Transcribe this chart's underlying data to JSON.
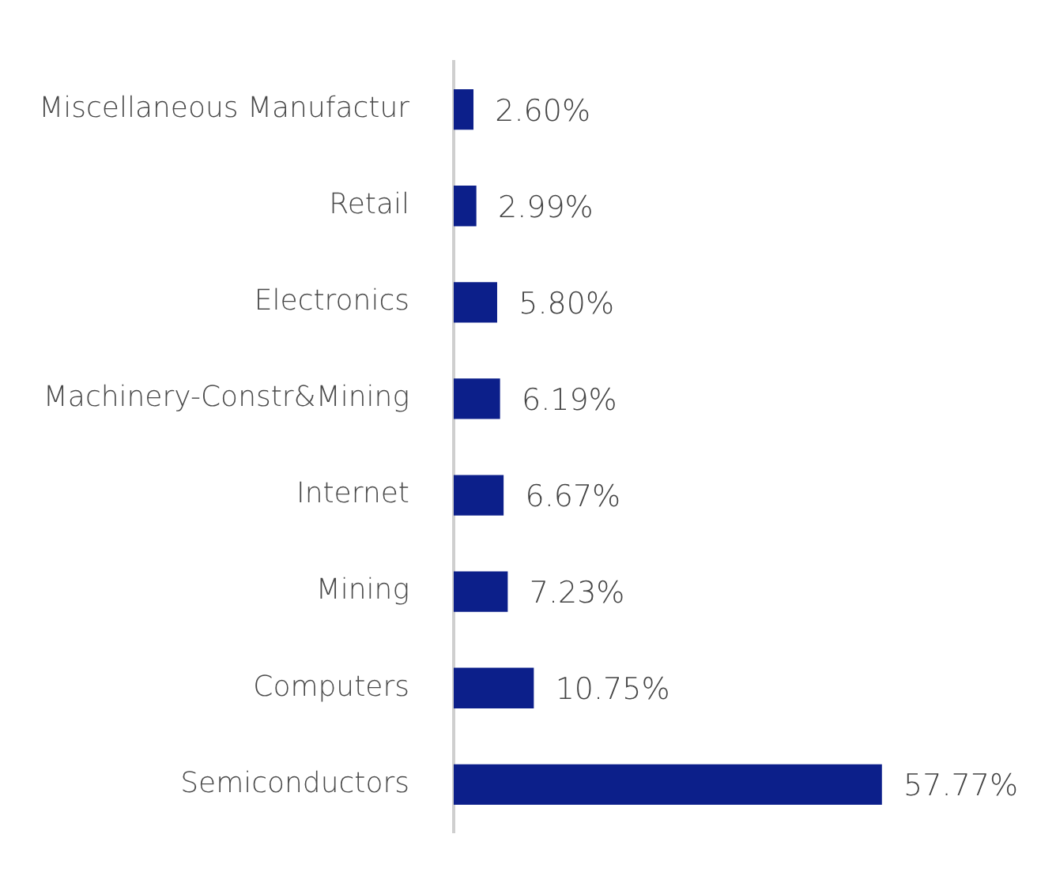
{
  "chart_data": {
    "type": "bar",
    "orientation": "horizontal",
    "categories": [
      "Miscellaneous Manufactur",
      "Retail",
      "Electronics",
      "Machinery-Constr&Mining",
      "Internet",
      "Mining",
      "Computers",
      "Semiconductors"
    ],
    "values": [
      2.6,
      2.99,
      5.8,
      6.19,
      6.67,
      7.23,
      10.75,
      57.77
    ],
    "value_labels": [
      "2.60%",
      "2.99%",
      "5.80%",
      "6.19%",
      "6.67%",
      "7.23%",
      "10.75%",
      "57.77%"
    ],
    "color": "#0c1f8a",
    "legend": false
  }
}
